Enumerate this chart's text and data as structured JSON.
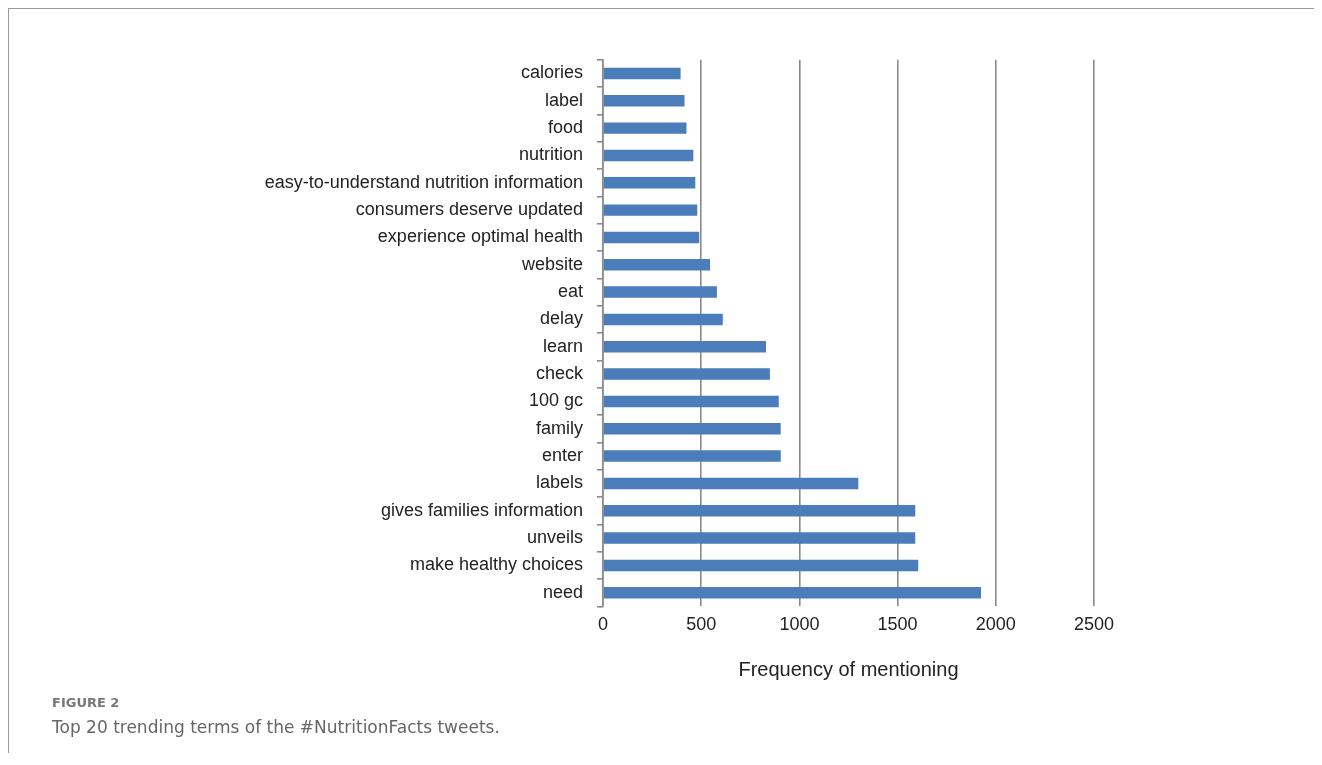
{
  "chart_data": {
    "type": "bar",
    "orientation": "horizontal",
    "title": "FIGURE 2",
    "subtitle": "Top 20 trending terms of the #NutritionFacts tweets.",
    "xlabel": "Frequency of mentioning",
    "categories": [
      "calories",
      "label",
      "food",
      "nutrition",
      "easy-to-understand nutrition information",
      "consumers deserve updated",
      "experience optimal health",
      "website",
      "eat",
      "delay",
      "learn",
      "check",
      "100 gc",
      "family",
      "enter",
      "labels",
      "gives families information",
      "unveils",
      "make healthy choices",
      "need"
    ],
    "values": [
      395,
      415,
      425,
      460,
      470,
      480,
      490,
      545,
      580,
      610,
      830,
      850,
      895,
      905,
      905,
      1300,
      1590,
      1590,
      1605,
      1925
    ],
    "color": "#4a7dba",
    "xlim": [
      0,
      2500
    ],
    "xticks": [
      0,
      500,
      1000,
      1500,
      2000,
      2500
    ],
    "grid": "x",
    "legend": false
  }
}
